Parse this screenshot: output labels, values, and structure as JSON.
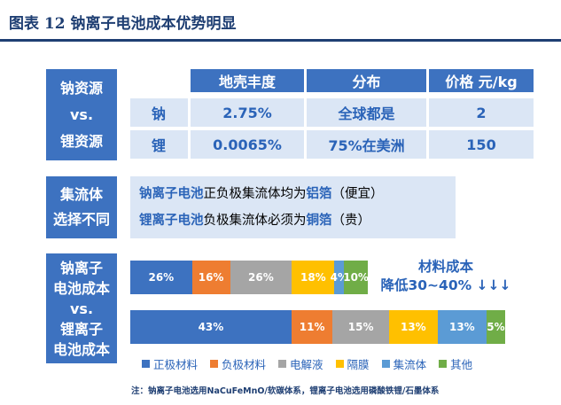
{
  "header": {
    "title": "图表 12   钠离子电池成本优势明显"
  },
  "left_labels": {
    "table": [
      "钠资源",
      "vs.",
      "锂资源"
    ],
    "collector": [
      "集流体",
      "选择不同"
    ],
    "cost": [
      "钠离子",
      "电池成本",
      "vs.",
      "锂离子",
      "电池成本"
    ]
  },
  "table": {
    "headers": [
      "地壳丰度",
      "分布",
      "价格 元/kg"
    ],
    "rows": [
      {
        "element": "钠",
        "abundance": "2.75%",
        "distribution": "全球都是",
        "price": "2"
      },
      {
        "element": "锂",
        "abundance": "0.0065%",
        "distribution": "75%在美洲",
        "price": "150"
      }
    ]
  },
  "collector": {
    "line1": {
      "highlight1": "钠离子电池",
      "text1": "正负极集流体均为",
      "highlight2": "铝箔",
      "text2": "（便宜）"
    },
    "line2": {
      "highlight1": "锂离子电池",
      "text1": "负极集流体必须为",
      "highlight2": "铜箔",
      "text2": "（贵）"
    }
  },
  "cost_callout": {
    "line1": "材料成本",
    "line2": "降低30~40% ↓↓↓"
  },
  "chart_data": {
    "type": "bar",
    "orientation": "horizontal-stacked",
    "title": "",
    "categories": [
      "钠离子电池成本",
      "锂离子电池成本"
    ],
    "series": [
      {
        "name": "正极材料",
        "color": "#3d72c0",
        "values": [
          26,
          43
        ],
        "labels": [
          "26%",
          "43%"
        ]
      },
      {
        "name": "负极材料",
        "color": "#ee7d31",
        "values": [
          16,
          11
        ],
        "labels": [
          "16%",
          "11%"
        ]
      },
      {
        "name": "电解液",
        "color": "#a5a5a5",
        "values": [
          26,
          15
        ],
        "labels": [
          "26%",
          "15%"
        ]
      },
      {
        "name": "隔膜",
        "color": "#ffc000",
        "values": [
          18,
          13
        ],
        "labels": [
          "18%",
          "13%"
        ]
      },
      {
        "name": "集流体",
        "color": "#5b9bd5",
        "values": [
          4,
          13
        ],
        "labels": [
          "4%",
          "13%"
        ]
      },
      {
        "name": "其他",
        "color": "#70ad47",
        "values": [
          10,
          5
        ],
        "labels": [
          "10%",
          "5%"
        ]
      }
    ],
    "totals_scale": [
      100,
      100
    ],
    "legend_position": "bottom"
  },
  "note": "注：钠离子电池选用NaCuFeMnO/软碳体系，锂离子电池选用磷酸铁锂/石墨体系"
}
